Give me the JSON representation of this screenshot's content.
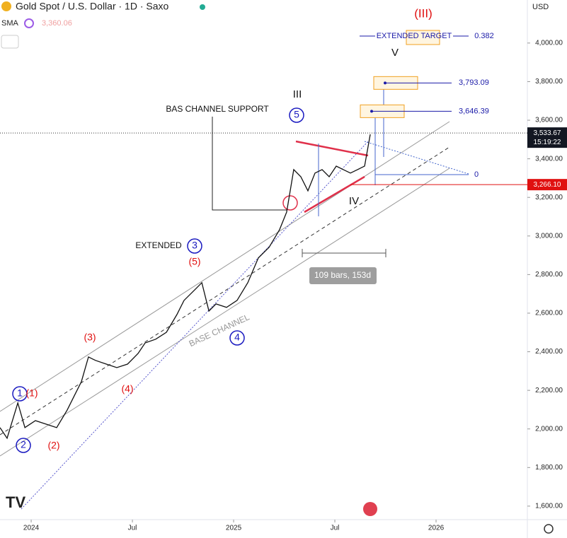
{
  "chart_data": {
    "type": "line",
    "title": "Gold Spot / U.S. Dollar · 1D · Saxo",
    "indicator": "SMA",
    "indicator_value": {
      "value": 3360.06,
      "label": "3,360.06"
    },
    "currency": "USD",
    "x": [
      2023.846,
      2023.881,
      2023.934,
      2023.969,
      2024.021,
      2024.073,
      2024.126,
      2024.178,
      2024.213,
      2024.248,
      2024.283,
      2024.318,
      2024.371,
      2024.423,
      2024.476,
      2024.528,
      2024.563,
      2024.615,
      2024.668,
      2024.72,
      2024.755,
      2024.808,
      2024.843,
      2024.878,
      2024.913,
      2024.965,
      2025.017,
      2025.07,
      2025.122,
      2025.175,
      2025.227,
      2025.262,
      2025.297,
      2025.332,
      2025.367,
      2025.402,
      2025.437,
      2025.472,
      2025.507,
      2025.542,
      2025.577,
      2025.612,
      2025.647,
      2025.675
    ],
    "series": [
      {
        "color": "#111111",
        "values": [
          2007,
          1952,
          2135,
          2007,
          2043,
          2025,
          2007,
          2098,
          2172,
          2245,
          2373,
          2355,
          2336,
          2318,
          2336,
          2391,
          2446,
          2465,
          2501,
          2593,
          2666,
          2721,
          2758,
          2611,
          2648,
          2630,
          2666,
          2758,
          2886,
          2941,
          3033,
          3124,
          3344,
          3307,
          3234,
          3326,
          3344,
          3307,
          3362,
          3344,
          3326,
          3344,
          3362,
          3527
        ]
      }
    ],
    "xlim": [
      2023.846,
      2026.451
    ],
    "xticks": [
      2024,
      {
        "value": 2024.5,
        "label": "Jul"
      },
      2025,
      {
        "value": 2025.5,
        "label": "Jul"
      },
      2026
    ],
    "ylim": [
      1530,
      4223
    ],
    "yticks": [
      {
        "value": 1600,
        "label": "1,600.00"
      },
      {
        "value": 1800,
        "label": "1,800.00"
      },
      {
        "value": 2000,
        "label": "2,000.00"
      },
      {
        "value": 2200,
        "label": "2,200.00"
      },
      {
        "value": 2400,
        "label": "2,400.00"
      },
      {
        "value": 2600,
        "label": "2,600.00"
      },
      {
        "value": 2800,
        "label": "2,800.00"
      },
      {
        "value": 3000,
        "label": "3,000.00"
      },
      {
        "value": 3200,
        "label": "3,200.00"
      },
      {
        "value": 3400,
        "label": "3,400.00"
      },
      {
        "value": 3600,
        "label": "3,600.00"
      },
      {
        "value": 3800,
        "label": "3,800.00"
      },
      {
        "value": 4000,
        "label": "4,000.00"
      }
    ],
    "last_price": {
      "value": 3533.67,
      "label": "3,533.67"
    },
    "countdown": "15:19:22",
    "price_levels": [
      {
        "value": 3793.09,
        "label": "3,793.09",
        "color": "#1a1aa8"
      },
      {
        "value": 3646.39,
        "label": "3,646.39",
        "color": "#1a1aa8"
      },
      {
        "value": 3266.1,
        "label": "3,266.10",
        "color": "#e01010"
      }
    ],
    "annotations": [
      {
        "text": "1",
        "color": "#1a1ac0",
        "circled": true
      },
      {
        "text": "(1)",
        "color": "#e01010",
        "circled": false
      },
      {
        "text": "2",
        "color": "#1a1ac0",
        "circled": true
      },
      {
        "text": "(2)",
        "color": "#e01010",
        "circled": false
      },
      {
        "text": "(3)",
        "color": "#e01010",
        "circled": false
      },
      {
        "text": "(4)",
        "color": "#e01010",
        "circled": false
      },
      {
        "text": "(5)",
        "color": "#e01010",
        "circled": false
      },
      {
        "text": "3",
        "color": "#1a1ac0",
        "circled": true
      },
      {
        "text": "EXTENDED",
        "color": "#111111",
        "circled": false
      },
      {
        "text": "4",
        "color": "#1a1ac0",
        "circled": true
      },
      {
        "text": "III",
        "color": "#111111",
        "circled": false
      },
      {
        "text": "5",
        "color": "#1a1ac0",
        "circled": true
      },
      {
        "text": "BAS CHANNEL SUPPORT",
        "color": "#111111",
        "circled": false
      },
      {
        "text": "IV",
        "color": "#111111",
        "circled": false
      },
      {
        "text": "V",
        "color": "#111111",
        "circled": false
      },
      {
        "text": "(III)",
        "color": "#e01010",
        "circled": false
      },
      {
        "text": "BASE CHANNEL",
        "color": "#999999",
        "circled": false
      },
      {
        "text": "EXTENDED TARGET",
        "color": "#1a1aa8",
        "circled": false
      },
      {
        "text": "0.382",
        "color": "#1a1aa8",
        "circled": false
      },
      {
        "text": "0",
        "color": "#1a1aa8",
        "circled": false
      },
      {
        "text": "109 bars, 153d",
        "color": "#ffffff",
        "circled": false
      }
    ]
  }
}
